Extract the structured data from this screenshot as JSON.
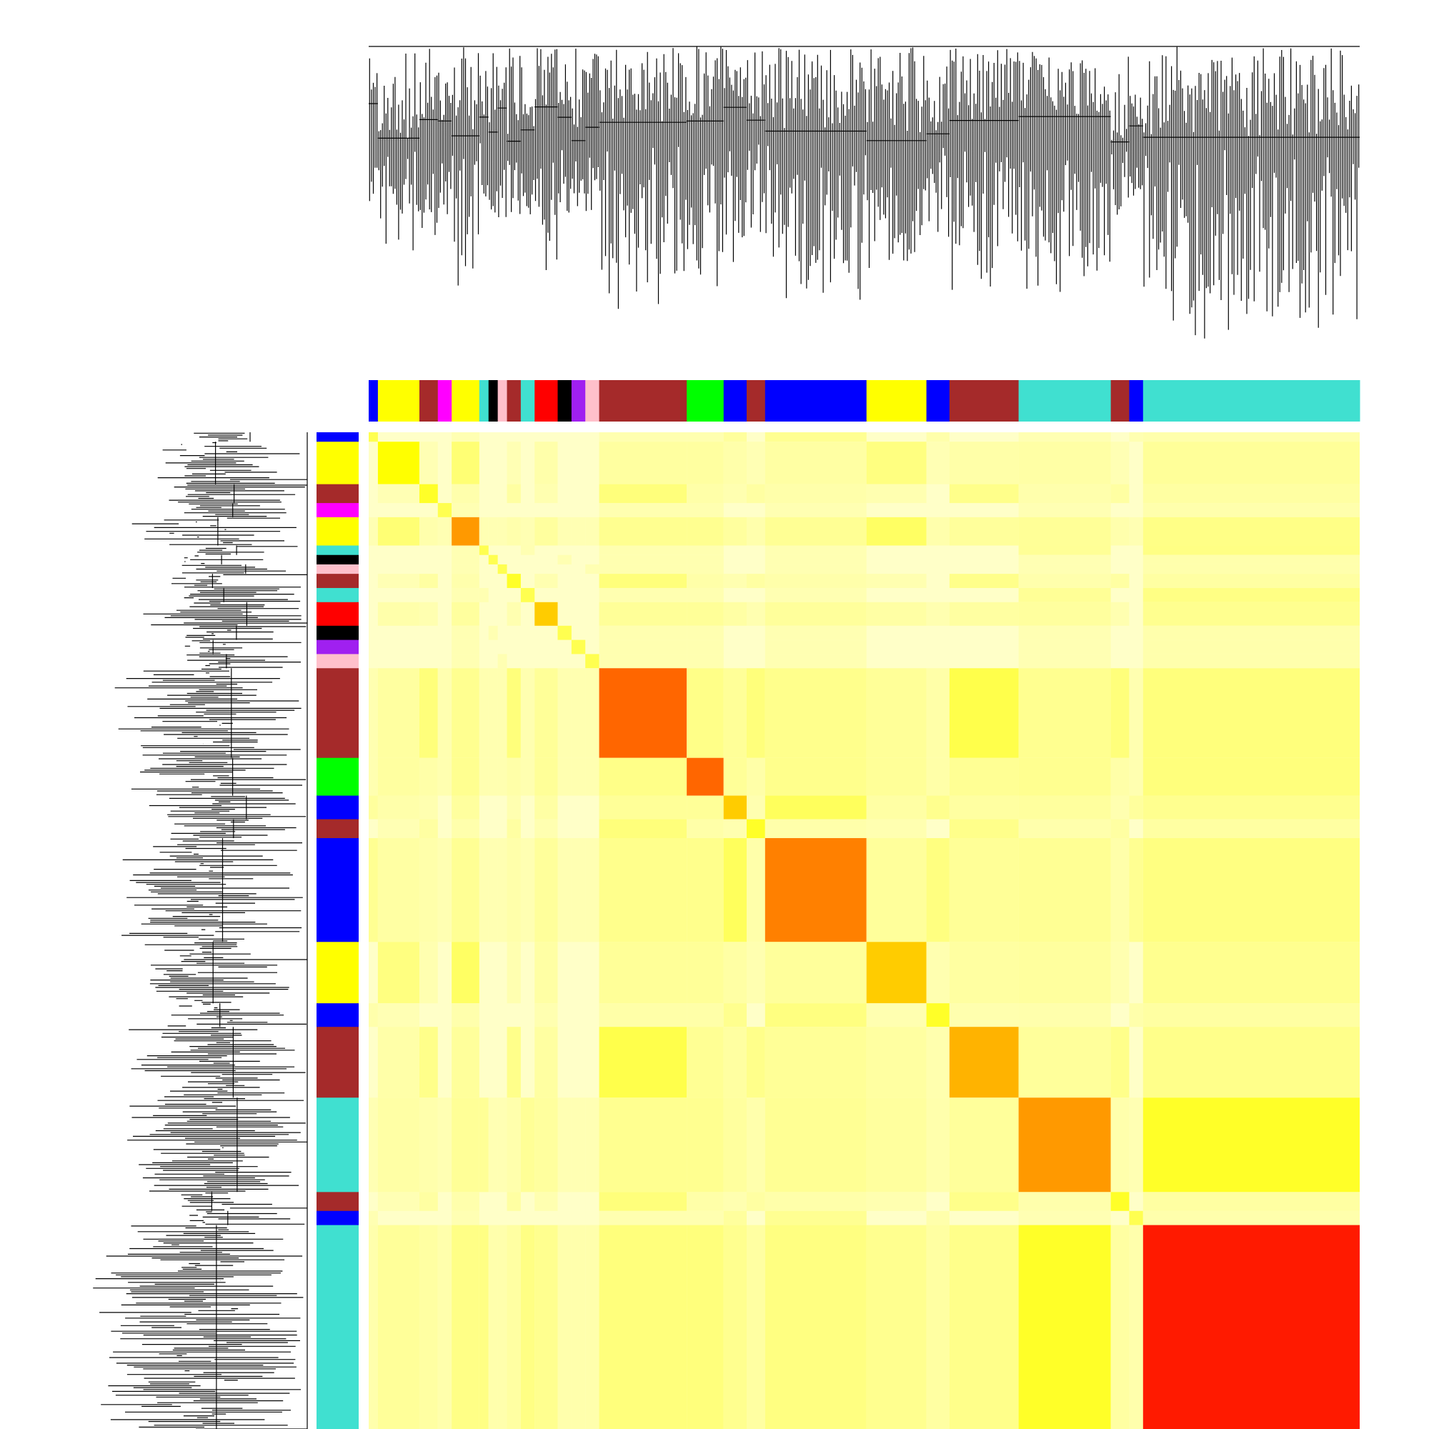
{
  "chart_data": {
    "type": "heatmap",
    "heat_colors": [
      "#ffffc8",
      "#ffff00",
      "#ff0000"
    ],
    "modules": [
      {
        "color": "#0000ff",
        "size": 10,
        "intensity": 0.3
      },
      {
        "color": "#ffff00",
        "size": 45,
        "intensity": 0.5
      },
      {
        "color": "#a52a2a",
        "size": 20,
        "intensity": 0.4
      },
      {
        "color": "#ff00ff",
        "size": 15,
        "intensity": 0.3
      },
      {
        "color": "#ffff00",
        "size": 30,
        "intensity": 0.7
      },
      {
        "color": "#40e0d0",
        "size": 10,
        "intensity": 0.3
      },
      {
        "color": "#000000",
        "size": 10,
        "intensity": 0.3
      },
      {
        "color": "#ffc0cb",
        "size": 10,
        "intensity": 0.3
      },
      {
        "color": "#a52a2a",
        "size": 15,
        "intensity": 0.4
      },
      {
        "color": "#40e0d0",
        "size": 15,
        "intensity": 0.3
      },
      {
        "color": "#ff0000",
        "size": 25,
        "intensity": 0.6
      },
      {
        "color": "#000000",
        "size": 15,
        "intensity": 0.3
      },
      {
        "color": "#a020f0",
        "size": 15,
        "intensity": 0.3
      },
      {
        "color": "#ffc0cb",
        "size": 15,
        "intensity": 0.3
      },
      {
        "color": "#a52a2a",
        "size": 95,
        "intensity": 0.8
      },
      {
        "color": "#00ff00",
        "size": 40,
        "intensity": 0.8
      },
      {
        "color": "#0000ff",
        "size": 25,
        "intensity": 0.6
      },
      {
        "color": "#a52a2a",
        "size": 20,
        "intensity": 0.4
      },
      {
        "color": "#0000ff",
        "size": 110,
        "intensity": 0.75
      },
      {
        "color": "#ffff00",
        "size": 65,
        "intensity": 0.6
      },
      {
        "color": "#0000ff",
        "size": 25,
        "intensity": 0.4
      },
      {
        "color": "#a52a2a",
        "size": 75,
        "intensity": 0.65
      },
      {
        "color": "#40e0d0",
        "size": 100,
        "intensity": 0.7
      },
      {
        "color": "#a52a2a",
        "size": 20,
        "intensity": 0.4
      },
      {
        "color": "#0000ff",
        "size": 15,
        "intensity": 0.3
      },
      {
        "color": "#40e0d0",
        "size": 235,
        "intensity": 0.95
      }
    ]
  }
}
